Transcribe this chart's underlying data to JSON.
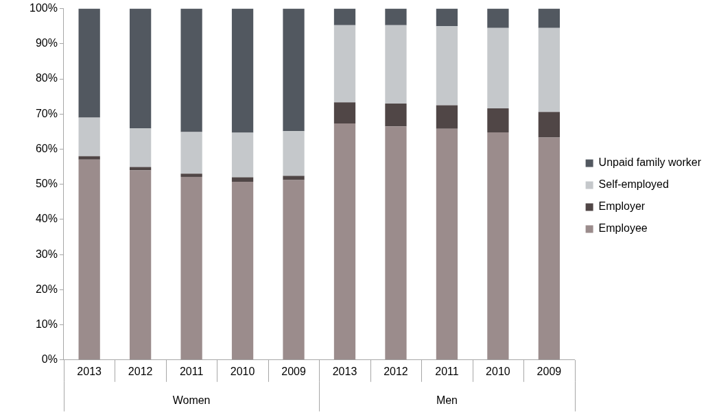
{
  "chart_data": {
    "type": "bar",
    "stacked": true,
    "categories": [
      "2013",
      "2012",
      "2011",
      "2010",
      "2009",
      "2013",
      "2012",
      "2011",
      "2010",
      "2009"
    ],
    "series": [
      {
        "name": "Employee",
        "color": "#9b8c8c",
        "values": [
          57,
          54,
          52.1,
          50.7,
          51.2,
          67.3,
          66.5,
          65.8,
          64.8,
          63.3
        ]
      },
      {
        "name": "Employer",
        "color": "#504646",
        "values": [
          1,
          0.9,
          0.9,
          1.3,
          1.2,
          6,
          6.5,
          6.7,
          6.8,
          7.3
        ]
      },
      {
        "name": "Self-employed",
        "color": "#c5c8cb",
        "values": [
          11,
          11,
          11.9,
          12.7,
          12.7,
          22,
          22.3,
          22.5,
          22.9,
          23.9
        ]
      },
      {
        "name": "Unpaid family worker",
        "color": "#525860",
        "values": [
          31,
          34.1,
          35.1,
          35.3,
          34.9,
          4.7,
          4.7,
          5,
          5.5,
          5.5
        ]
      }
    ],
    "ylim": [
      0,
      100
    ],
    "yticks": [
      {
        "value": 0,
        "label": "0%"
      },
      {
        "value": 10,
        "label": "10%"
      },
      {
        "value": 20,
        "label": "20%"
      },
      {
        "value": 30,
        "label": "30%"
      },
      {
        "value": 40,
        "label": "40%"
      },
      {
        "value": 50,
        "label": "50%"
      },
      {
        "value": 60,
        "label": "60%"
      },
      {
        "value": 70,
        "label": "70%"
      },
      {
        "value": 80,
        "label": "80%"
      },
      {
        "value": 90,
        "label": "90%"
      },
      {
        "value": 100,
        "label": "100%"
      }
    ],
    "annotations": [
      "Women",
      "Men"
    ],
    "grid": false,
    "legend": "right"
  }
}
